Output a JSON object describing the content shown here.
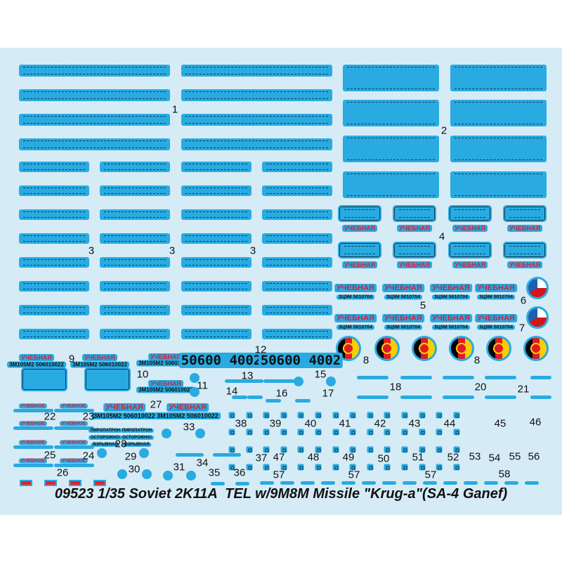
{
  "title": "09523 1/35 Soviet 2K11A  TEL w/9M8M Missile \"Krug-a\"(SA-4 Ganef)",
  "texts": {
    "uchebnaya": "УЧЕБНАЯ",
    "uchebnoe": "УЧЕБНОЕ",
    "code_5": "3Ц5М 5010704",
    "code_9": "3М105М2 506010022",
    "serial_12": "50600 4002",
    "piropatron": "ПИРОПАТРОН",
    "ostorozhno": "ОСТОРОЖНО!",
    "vzryvnaya": "ВЗРЫВНАЯ"
  },
  "numbers": [
    "1",
    "2",
    "3",
    "3",
    "3",
    "4",
    "5",
    "6",
    "7",
    "8",
    "8",
    "9",
    "10",
    "11",
    "12",
    "13",
    "14",
    "15",
    "16",
    "17",
    "18",
    "20",
    "21",
    "22",
    "23",
    "24",
    "25",
    "26",
    "27",
    "28",
    "29",
    "30",
    "31",
    "33",
    "34",
    "35",
    "36",
    "37",
    "38",
    "39",
    "40",
    "41",
    "42",
    "43",
    "44",
    "45",
    "46",
    "47",
    "48",
    "49",
    "50",
    "51",
    "52",
    "53",
    "54",
    "55",
    "56",
    "57",
    "57",
    "57",
    "58"
  ],
  "colors": {
    "sheet": "#d5ebf6",
    "decal": "#29abe2",
    "red": "#d9203a",
    "czech_blue": "#1f5fae",
    "gdr_black": "#000000",
    "gdr_red": "#dd1c24",
    "gdr_gold": "#ffcc00"
  }
}
